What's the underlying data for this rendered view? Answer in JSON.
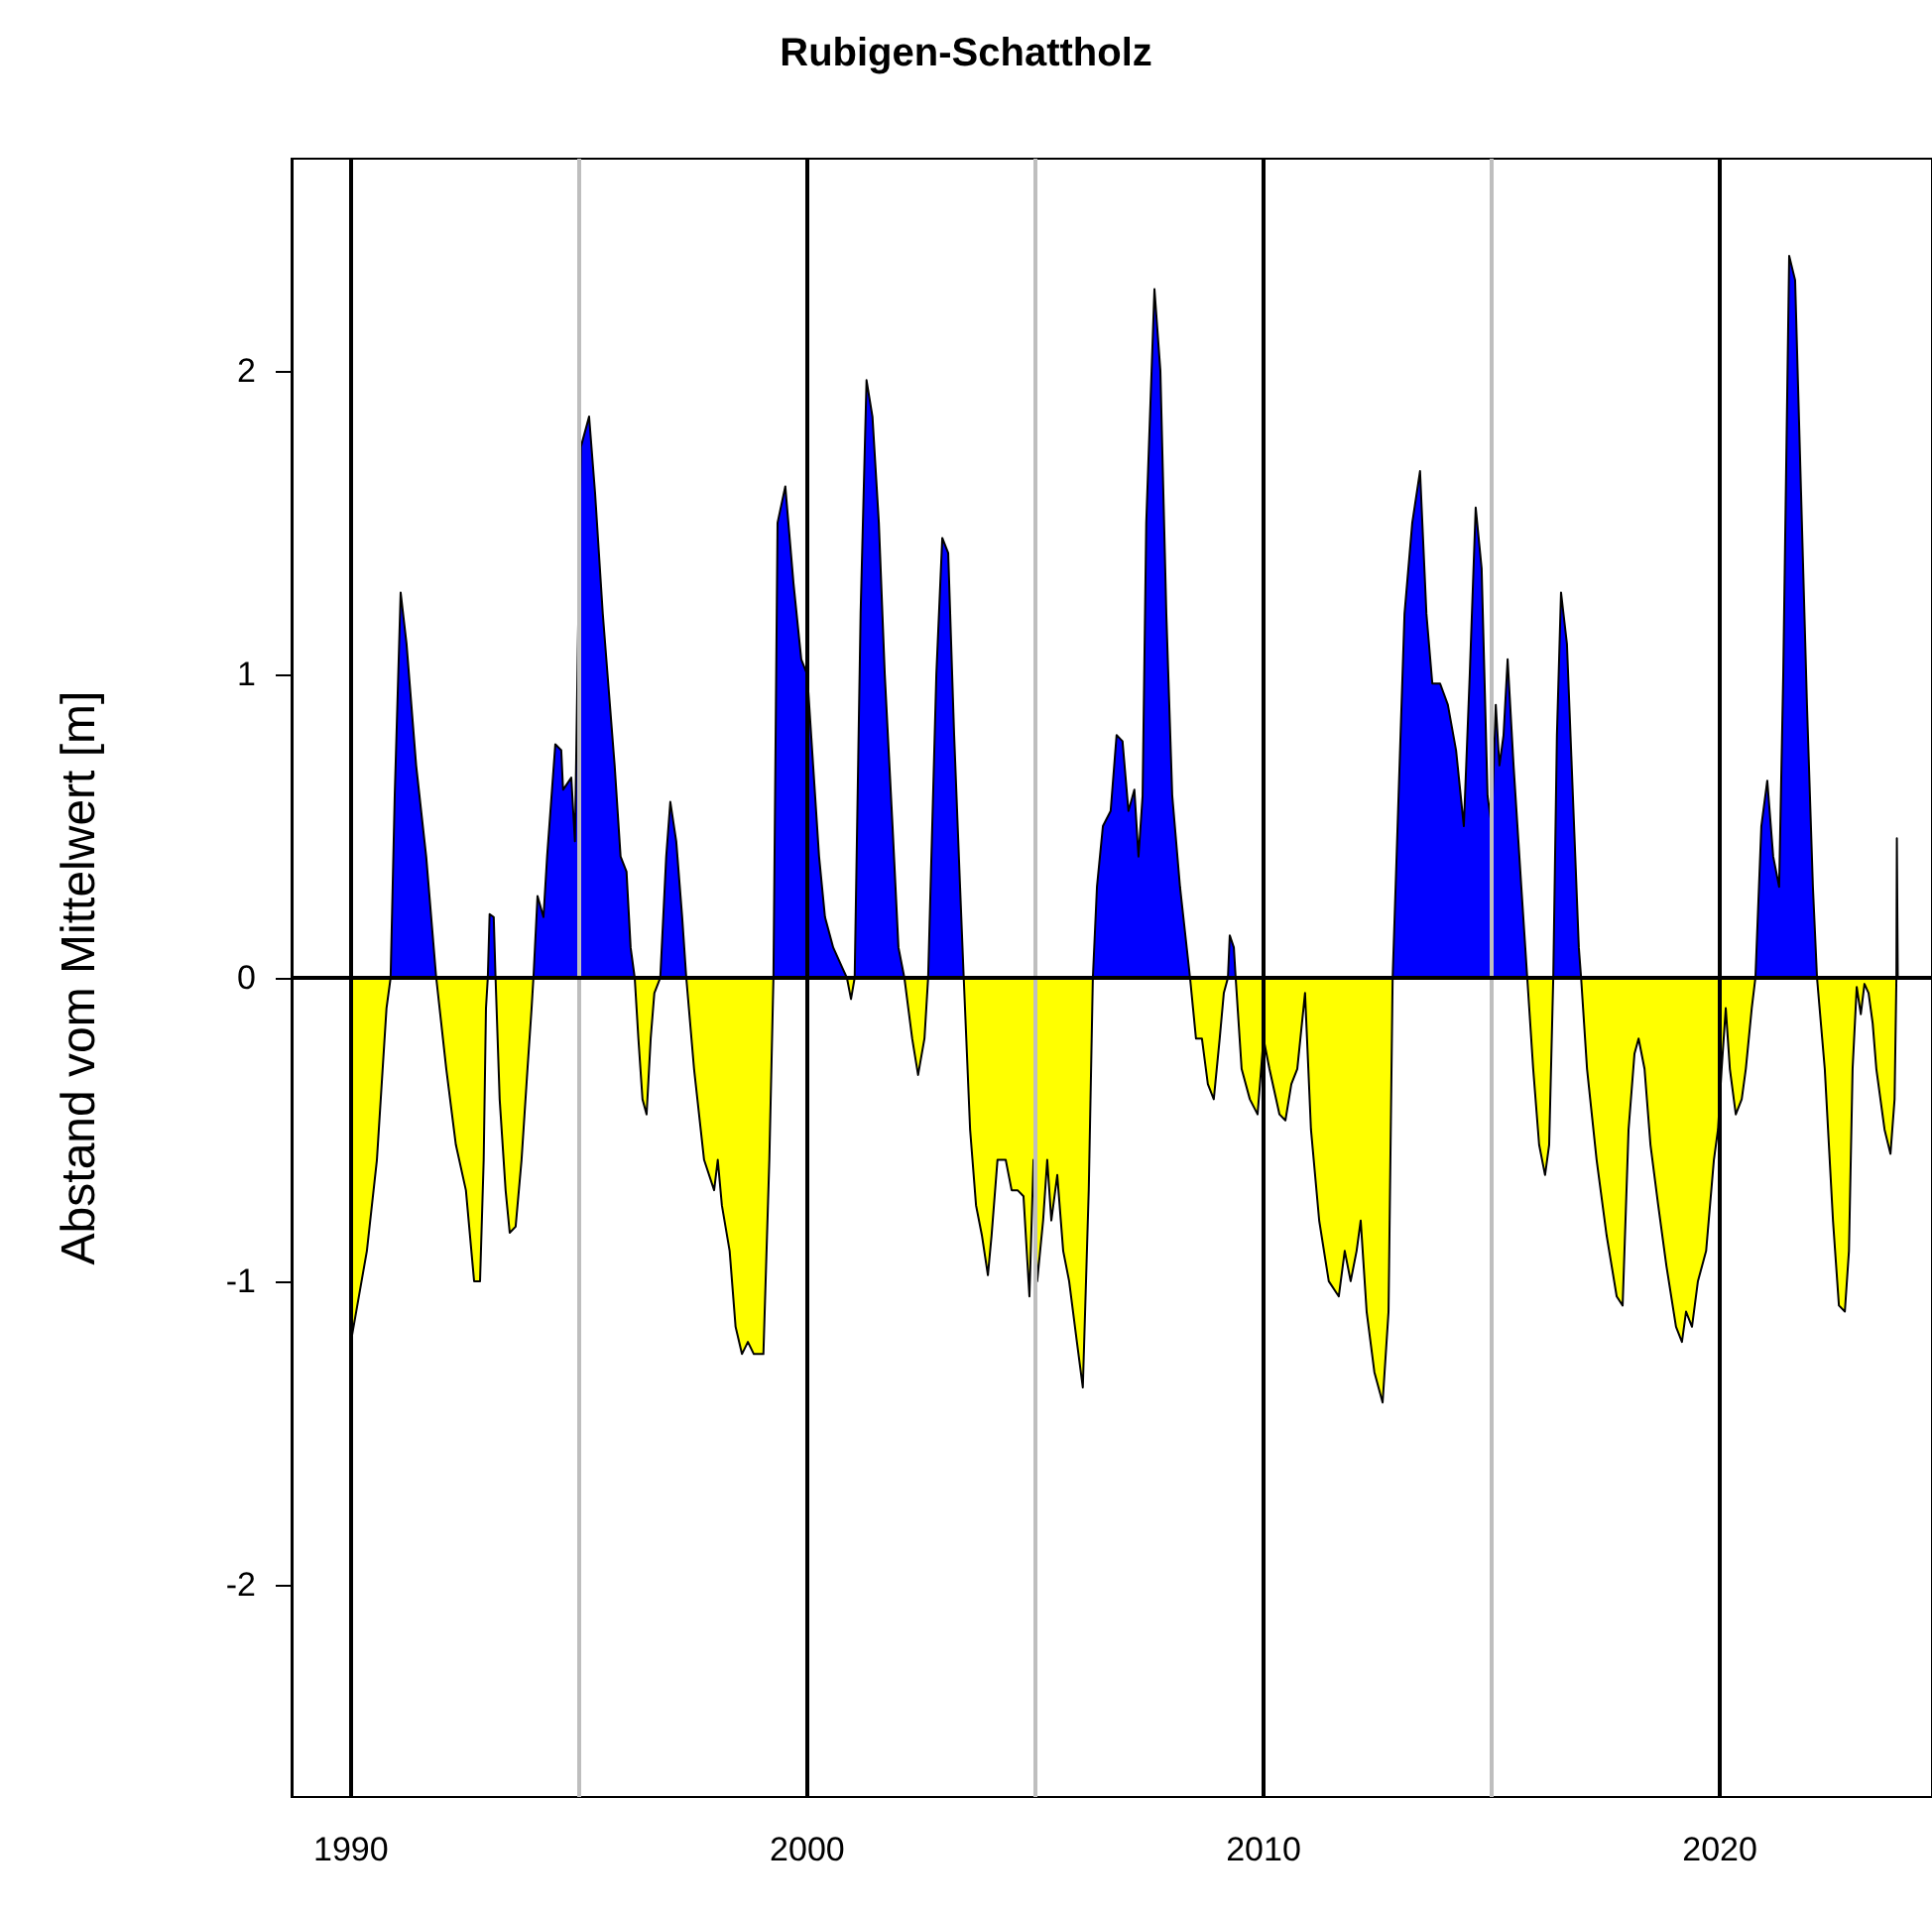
{
  "chart_data": {
    "type": "area",
    "title": "Rubigen-Schattholz",
    "ylabel": "Abstand vom Mittelwert [m]",
    "xlim": [
      1988.7,
      2024.65
    ],
    "xticks": [
      1990,
      2000,
      2010,
      2020
    ],
    "ylim": [
      -2.7,
      2.7
    ],
    "yticks": [
      -2,
      -1,
      0,
      1,
      2
    ],
    "grid": false,
    "ref_lines": [
      {
        "axis": "x",
        "value": 1990,
        "color": "#000000"
      },
      {
        "axis": "x",
        "value": 1995,
        "color": "#bebebe"
      },
      {
        "axis": "x",
        "value": 2000,
        "color": "#000000"
      },
      {
        "axis": "x",
        "value": 2005,
        "color": "#bebebe"
      },
      {
        "axis": "x",
        "value": 2010,
        "color": "#000000"
      },
      {
        "axis": "x",
        "value": 2015,
        "color": "#bebebe"
      },
      {
        "axis": "x",
        "value": 2020,
        "color": "#000000"
      },
      {
        "axis": "y",
        "value": 0,
        "color": "#000000"
      }
    ],
    "series": [
      {
        "color": "#0000ff",
        "x": [
          1990.87,
          1990.96,
          1991.09,
          1991.22,
          1991.43,
          1991.65,
          1991.87,
          null,
          1993.0,
          1993.04,
          1993.13,
          1993.17,
          null,
          1994.0,
          1994.09,
          1994.22,
          1994.3,
          1994.48,
          1994.61,
          1994.65,
          1994.83,
          1994.91,
          1995.04,
          1995.22,
          1995.35,
          1995.52,
          1995.78,
          1995.91,
          1996.04,
          1996.13,
          1996.22,
          null,
          1996.78,
          1996.91,
          1997.0,
          1997.13,
          1997.26,
          1997.35,
          null,
          1999.26,
          1999.35,
          1999.52,
          1999.7,
          1999.87,
          2000.0,
          2000.13,
          2000.26,
          2000.39,
          2000.57,
          2000.78,
          2000.87,
          null,
          2001.04,
          2001.17,
          2001.3,
          2001.43,
          2001.57,
          2001.7,
          2001.87,
          2002.0,
          2002.13,
          null,
          2002.65,
          2002.83,
          2002.96,
          2003.09,
          2003.22,
          2003.35,
          2003.43,
          null,
          2006.26,
          2006.35,
          2006.48,
          2006.65,
          2006.78,
          2006.91,
          2007.04,
          2007.17,
          2007.26,
          2007.35,
          2007.43,
          2007.61,
          2007.74,
          2007.87,
          2008.0,
          2008.17,
          2008.39,
          null,
          2009.22,
          2009.26,
          2009.35,
          2009.39,
          null,
          2012.83,
          2012.96,
          2013.09,
          2013.26,
          2013.43,
          2013.57,
          2013.7,
          2013.87,
          2014.04,
          2014.22,
          2014.39,
          2014.52,
          2014.65,
          2014.78,
          2014.91,
          2015.0,
          2015.09,
          2015.17,
          2015.26,
          2015.35,
          2015.48,
          2015.65,
          2015.78,
          null,
          2016.35,
          2016.43,
          2016.52,
          2016.65,
          2016.78,
          2016.91,
          2016.96,
          null,
          2020.78,
          2020.91,
          2021.04,
          2021.17,
          2021.3,
          2021.39,
          2021.52,
          2021.65,
          2021.78,
          2021.91,
          2022.04,
          2022.13,
          null,
          2023.87,
          2023.88,
          2023.9
        ],
        "values": [
          0,
          0.6,
          1.27,
          1.1,
          0.7,
          0.4,
          0,
          null,
          0,
          0.21,
          0.2,
          0,
          null,
          0,
          0.27,
          0.2,
          0.4,
          0.77,
          0.75,
          0.62,
          0.66,
          0.45,
          1.75,
          1.85,
          1.6,
          1.2,
          0.7,
          0.4,
          0.35,
          0.1,
          0,
          null,
          0,
          0.4,
          0.58,
          0.45,
          0.2,
          0,
          null,
          0,
          1.5,
          1.62,
          1.3,
          1.05,
          1.0,
          0.7,
          0.4,
          0.2,
          0.1,
          0.03,
          0,
          null,
          0,
          1.2,
          1.97,
          1.85,
          1.5,
          1.0,
          0.5,
          0.1,
          0,
          null,
          0,
          1.0,
          1.45,
          1.4,
          0.8,
          0.3,
          0,
          null,
          0,
          0.3,
          0.5,
          0.55,
          0.8,
          0.78,
          0.55,
          0.62,
          0.4,
          0.6,
          1.5,
          2.27,
          2.0,
          1.2,
          0.6,
          0.3,
          0,
          null,
          0,
          0.14,
          0.1,
          0,
          null,
          0,
          0.6,
          1.2,
          1.5,
          1.67,
          1.2,
          0.97,
          0.97,
          0.9,
          0.75,
          0.5,
          1.0,
          1.55,
          1.35,
          0.6,
          0.5,
          0.9,
          0.7,
          0.8,
          1.05,
          0.7,
          0.3,
          0,
          null,
          0,
          0.8,
          1.27,
          1.1,
          0.6,
          0.1,
          0,
          null,
          0,
          0.5,
          0.65,
          0.4,
          0.3,
          1.0,
          2.38,
          2.3,
          1.6,
          0.9,
          0.3,
          0,
          null,
          0,
          0.46,
          0
        ]
      },
      {
        "color": "#ffff00",
        "x": [
          1990.0,
          1990.35,
          1990.57,
          1990.78,
          1990.87,
          null,
          1991.87,
          1992.09,
          1992.3,
          1992.52,
          1992.7,
          1992.83,
          1992.91,
          1992.96,
          1993.0,
          null,
          1993.17,
          1993.26,
          1993.39,
          1993.48,
          1993.61,
          1993.74,
          1993.87,
          1993.96,
          1994.0,
          null,
          1996.22,
          1996.3,
          1996.39,
          1996.48,
          1996.57,
          1996.65,
          1996.78,
          null,
          1997.35,
          1997.52,
          1997.74,
          1997.96,
          1998.04,
          1998.13,
          1998.3,
          1998.43,
          1998.57,
          1998.7,
          1998.83,
          1999.04,
          1999.17,
          1999.26,
          null,
          2000.87,
          2000.96,
          2001.04,
          null,
          2002.13,
          2002.3,
          2002.43,
          2002.57,
          2002.65,
          null,
          2003.43,
          2003.57,
          2003.7,
          2003.83,
          2003.96,
          2004.04,
          2004.17,
          2004.35,
          2004.48,
          2004.61,
          2004.74,
          2004.87,
          2004.96,
          2005.04,
          2005.17,
          2005.26,
          2005.35,
          2005.48,
          2005.61,
          2005.74,
          2005.91,
          2006.04,
          2006.17,
          2006.26,
          null,
          2008.39,
          2008.52,
          2008.65,
          2008.78,
          2008.91,
          2009.04,
          2009.13,
          2009.22,
          null,
          2009.39,
          2009.52,
          2009.7,
          2009.87,
          2010.0,
          2010.13,
          2010.35,
          2010.48,
          2010.61,
          2010.74,
          2010.91,
          2011.04,
          2011.22,
          2011.43,
          2011.65,
          2011.78,
          2011.91,
          2012.04,
          2012.13,
          2012.26,
          2012.43,
          2012.61,
          2012.74,
          2012.83,
          null,
          2015.78,
          2015.91,
          2016.04,
          2016.17,
          2016.26,
          2016.35,
          null,
          2016.96,
          2017.09,
          2017.3,
          2017.52,
          2017.74,
          2017.87,
          2018.0,
          2018.13,
          2018.22,
          2018.35,
          2018.48,
          2018.65,
          2018.83,
          2019.04,
          2019.17,
          2019.26,
          2019.39,
          2019.52,
          2019.7,
          2019.87,
          2019.96,
          2020.04,
          2020.13,
          2020.22,
          2020.35,
          2020.48,
          2020.57,
          2020.7,
          2020.78,
          null,
          2022.13,
          2022.3,
          2022.48,
          2022.61,
          2022.74,
          2022.83,
          2022.91,
          2023.0,
          2023.09,
          2023.17,
          2023.26,
          2023.35,
          2023.43,
          2023.61,
          2023.74,
          2023.83,
          2023.87
        ],
        "values": [
          -1.2,
          -0.9,
          -0.6,
          -0.1,
          0,
          null,
          0,
          -0.3,
          -0.55,
          -0.7,
          -1.0,
          -1.0,
          -0.6,
          -0.1,
          0,
          null,
          0,
          -0.4,
          -0.7,
          -0.84,
          -0.82,
          -0.6,
          -0.3,
          -0.1,
          0,
          null,
          0,
          -0.2,
          -0.4,
          -0.45,
          -0.2,
          -0.05,
          0,
          null,
          0,
          -0.3,
          -0.6,
          -0.7,
          -0.6,
          -0.75,
          -0.9,
          -1.15,
          -1.24,
          -1.2,
          -1.24,
          -1.24,
          -0.6,
          0,
          null,
          0,
          -0.07,
          0,
          null,
          0,
          -0.2,
          -0.32,
          -0.2,
          0,
          null,
          0,
          -0.5,
          -0.75,
          -0.85,
          -0.98,
          -0.85,
          -0.6,
          -0.6,
          -0.7,
          -0.7,
          -0.72,
          -1.05,
          -0.6,
          -1.0,
          -0.8,
          -0.6,
          -0.8,
          -0.65,
          -0.9,
          -1.0,
          -1.2,
          -1.35,
          -0.7,
          0,
          null,
          0,
          -0.2,
          -0.2,
          -0.35,
          -0.4,
          -0.2,
          -0.05,
          0,
          null,
          0,
          -0.3,
          -0.4,
          -0.45,
          -0.2,
          -0.3,
          -0.45,
          -0.47,
          -0.35,
          -0.3,
          -0.05,
          -0.5,
          -0.8,
          -1.0,
          -1.05,
          -0.9,
          -1.0,
          -0.9,
          -0.8,
          -1.1,
          -1.3,
          -1.4,
          -1.1,
          0,
          null,
          0,
          -0.3,
          -0.55,
          -0.65,
          -0.55,
          0,
          null,
          0,
          -0.3,
          -0.6,
          -0.85,
          -1.05,
          -1.08,
          -0.5,
          -0.25,
          -0.2,
          -0.3,
          -0.55,
          -0.75,
          -0.95,
          -1.15,
          -1.2,
          -1.1,
          -1.15,
          -1.0,
          -0.9,
          -0.6,
          -0.5,
          -0.3,
          -0.1,
          -0.3,
          -0.45,
          -0.4,
          -0.3,
          -0.1,
          0,
          null,
          0,
          -0.3,
          -0.8,
          -1.08,
          -1.1,
          -0.9,
          -0.3,
          -0.03,
          -0.12,
          -0.02,
          -0.05,
          -0.15,
          -0.3,
          -0.5,
          -0.58,
          -0.4,
          0
        ]
      }
    ]
  }
}
